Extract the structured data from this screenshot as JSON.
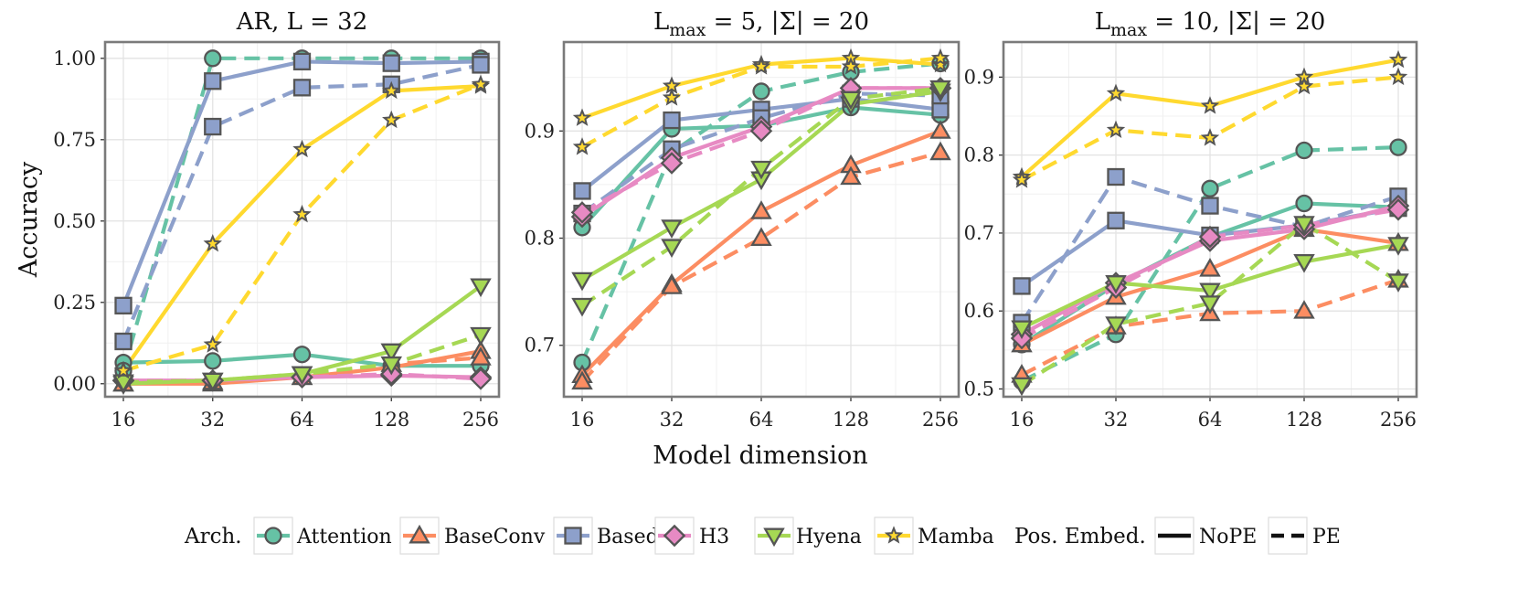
{
  "chart_data": {
    "type": "line",
    "xlabel": "Model dimension",
    "ylabel": "Accuracy",
    "categories": [
      "16",
      "32",
      "64",
      "128",
      "256"
    ],
    "colors": {
      "Attention": "#66c2a5",
      "BaseConv": "#fc8d62",
      "Based": "#8da0cb",
      "H3": "#e78ac3",
      "Hyena": "#a6d854",
      "Mamba": "#ffd92f"
    },
    "markers": {
      "Attention": "circle",
      "BaseConv": "triangle-up",
      "Based": "square",
      "H3": "diamond",
      "Hyena": "triangle-down",
      "Mamba": "star"
    },
    "legend": {
      "arch_title": "Arch.",
      "arch_items": [
        "Attention",
        "BaseConv",
        "Based",
        "H3",
        "Hyena",
        "Mamba"
      ],
      "pe_title": "Pos. Embed.",
      "pe_items": [
        {
          "label": "NoPE",
          "style": "solid"
        },
        {
          "label": "PE",
          "style": "dashed"
        }
      ],
      "placement": "bottom"
    },
    "panels": [
      {
        "title_parts": [
          "AR, L = 32"
        ],
        "ylim": [
          -0.04,
          1.05
        ],
        "yticks": [
          0,
          0.25,
          0.5,
          0.75,
          1.0
        ],
        "ytick_labels": [
          "0.00",
          "0.25",
          "0.50",
          "0.75",
          "1.00"
        ],
        "series": [
          {
            "arch": "Attention",
            "pe": "NoPE",
            "values": [
              0.065,
              0.07,
              0.09,
              0.055,
              0.055
            ]
          },
          {
            "arch": "Attention",
            "pe": "PE",
            "values": [
              0.04,
              1.0,
              1.0,
              1.0,
              1.0
            ]
          },
          {
            "arch": "BaseConv",
            "pe": "NoPE",
            "values": [
              0.0,
              0.0,
              0.02,
              0.05,
              0.1
            ]
          },
          {
            "arch": "BaseConv",
            "pe": "PE",
            "values": [
              0.0,
              0.005,
              0.02,
              0.06,
              0.08
            ]
          },
          {
            "arch": "Based",
            "pe": "NoPE",
            "values": [
              0.24,
              0.93,
              0.99,
              0.985,
              0.99
            ]
          },
          {
            "arch": "Based",
            "pe": "PE",
            "values": [
              0.13,
              0.79,
              0.91,
              0.92,
              0.98
            ]
          },
          {
            "arch": "H3",
            "pe": "NoPE",
            "values": [
              0.01,
              0.01,
              0.02,
              0.025,
              0.02
            ]
          },
          {
            "arch": "H3",
            "pe": "PE",
            "values": [
              0.01,
              0.01,
              0.02,
              0.03,
              0.015
            ]
          },
          {
            "arch": "Hyena",
            "pe": "NoPE",
            "values": [
              0.0,
              0.01,
              0.03,
              0.1,
              0.3
            ]
          },
          {
            "arch": "Hyena",
            "pe": "PE",
            "values": [
              0.005,
              0.01,
              0.03,
              0.06,
              0.15
            ]
          },
          {
            "arch": "Mamba",
            "pe": "NoPE",
            "values": [
              0.04,
              0.43,
              0.72,
              0.9,
              0.915
            ]
          },
          {
            "arch": "Mamba",
            "pe": "PE",
            "values": [
              0.04,
              0.12,
              0.52,
              0.81,
              0.92
            ]
          }
        ]
      },
      {
        "title_parts": [
          "L",
          "max",
          " = 5, |Σ| = 20"
        ],
        "ylim": [
          0.652,
          0.983
        ],
        "yticks": [
          0.7,
          0.8,
          0.9
        ],
        "ytick_labels": [
          "0.7",
          "0.8",
          "0.9"
        ],
        "series": [
          {
            "arch": "Attention",
            "pe": "NoPE",
            "values": [
              0.81,
              0.902,
              0.905,
              0.922,
              0.915
            ]
          },
          {
            "arch": "Attention",
            "pe": "PE",
            "values": [
              0.684,
              0.88,
              0.937,
              0.955,
              0.963
            ]
          },
          {
            "arch": "BaseConv",
            "pe": "NoPE",
            "values": [
              0.672,
              0.757,
              0.825,
              0.868,
              0.9
            ]
          },
          {
            "arch": "BaseConv",
            "pe": "PE",
            "values": [
              0.666,
              0.755,
              0.8,
              0.857,
              0.88
            ]
          },
          {
            "arch": "Based",
            "pe": "NoPE",
            "values": [
              0.844,
              0.91,
              0.92,
              0.93,
              0.92
            ]
          },
          {
            "arch": "Based",
            "pe": "PE",
            "values": [
              0.823,
              0.883,
              0.912,
              0.935,
              0.933
            ]
          },
          {
            "arch": "H3",
            "pe": "NoPE",
            "values": [
              0.82,
              0.875,
              0.904,
              0.94,
              0.94
            ]
          },
          {
            "arch": "H3",
            "pe": "PE",
            "values": [
              0.824,
              0.87,
              0.9,
              0.94,
              0.94
            ]
          },
          {
            "arch": "Hyena",
            "pe": "NoPE",
            "values": [
              0.761,
              0.81,
              0.855,
              0.925,
              0.937
            ]
          },
          {
            "arch": "Hyena",
            "pe": "PE",
            "values": [
              0.737,
              0.792,
              0.865,
              0.93,
              0.94
            ]
          },
          {
            "arch": "Mamba",
            "pe": "NoPE",
            "values": [
              0.912,
              0.942,
              0.962,
              0.968,
              0.962
            ]
          },
          {
            "arch": "Mamba",
            "pe": "PE",
            "values": [
              0.885,
              0.931,
              0.96,
              0.96,
              0.968
            ]
          }
        ]
      },
      {
        "title_parts": [
          "L",
          "max",
          " = 10, |Σ| = 20"
        ],
        "ylim": [
          0.49,
          0.945
        ],
        "yticks": [
          0.5,
          0.6,
          0.7,
          0.8,
          0.9
        ],
        "ytick_labels": [
          "0.5",
          "0.6",
          "0.7",
          "0.8",
          "0.9"
        ],
        "series": [
          {
            "arch": "Attention",
            "pe": "NoPE",
            "values": [
              0.557,
              0.634,
              0.695,
              0.738,
              0.733
            ]
          },
          {
            "arch": "Attention",
            "pe": "PE",
            "values": [
              0.51,
              0.57,
              0.757,
              0.806,
              0.81
            ]
          },
          {
            "arch": "BaseConv",
            "pe": "NoPE",
            "values": [
              0.557,
              0.618,
              0.654,
              0.705,
              0.687
            ]
          },
          {
            "arch": "BaseConv",
            "pe": "PE",
            "values": [
              0.518,
              0.58,
              0.597,
              0.6,
              0.64
            ]
          },
          {
            "arch": "Based",
            "pe": "NoPE",
            "values": [
              0.632,
              0.716,
              0.697,
              0.71,
              0.732
            ]
          },
          {
            "arch": "Based",
            "pe": "PE",
            "values": [
              0.585,
              0.772,
              0.735,
              0.708,
              0.747
            ]
          },
          {
            "arch": "H3",
            "pe": "NoPE",
            "values": [
              0.57,
              0.636,
              0.69,
              0.705,
              0.735
            ]
          },
          {
            "arch": "H3",
            "pe": "PE",
            "values": [
              0.565,
              0.63,
              0.695,
              0.71,
              0.73
            ]
          },
          {
            "arch": "Hyena",
            "pe": "NoPE",
            "values": [
              0.578,
              0.636,
              0.626,
              0.663,
              0.685
            ]
          },
          {
            "arch": "Hyena",
            "pe": "PE",
            "values": [
              0.505,
              0.583,
              0.61,
              0.712,
              0.638
            ]
          },
          {
            "arch": "Mamba",
            "pe": "NoPE",
            "values": [
              0.772,
              0.879,
              0.863,
              0.9,
              0.922
            ]
          },
          {
            "arch": "Mamba",
            "pe": "PE",
            "values": [
              0.768,
              0.832,
              0.822,
              0.888,
              0.9
            ]
          }
        ]
      }
    ]
  }
}
